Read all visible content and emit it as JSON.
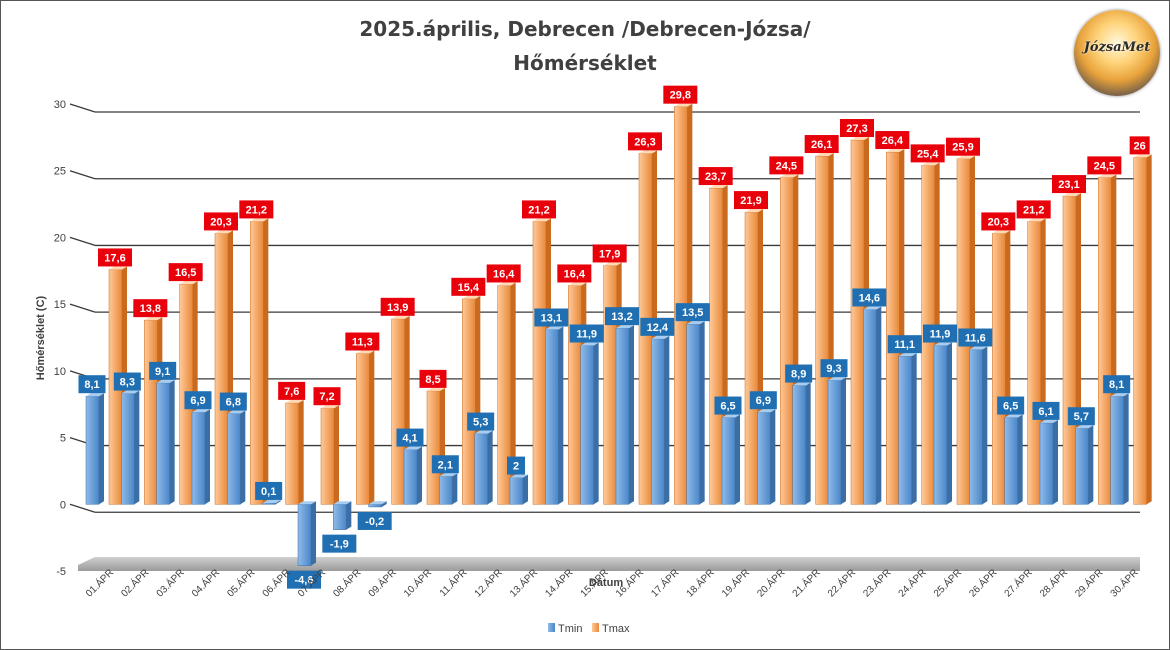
{
  "title_line1": "2025.április, Debrecen /Debrecen-Józsa/",
  "title_line2": "Hőmérséklet",
  "logo_text": "JózsaMet",
  "chart_data": {
    "type": "bar",
    "title": "2025.április, Debrecen /Debrecen-Józsa/ Hőmérséklet",
    "xlabel": "Dátum",
    "ylabel": "Hőmérséklet (C)",
    "ylim": [
      -5,
      30
    ],
    "yticks": [
      -5,
      0,
      5,
      10,
      15,
      20,
      25,
      30
    ],
    "categories": [
      "01.ÁPR",
      "02.ÁPR",
      "03.ÁPR",
      "04.ÁPR",
      "05.ÁPR",
      "06.ÁPR",
      "07.ÁPR",
      "08.ÁPR",
      "09.ÁPR",
      "10.ÁPR",
      "11.ÁPR",
      "12.ÁPR",
      "13.ÁPR",
      "14.ÁPR",
      "15.ÁPR",
      "16.ÁPR",
      "17.ÁPR",
      "18.ÁPR",
      "19.ÁPR",
      "20.ÁPR",
      "21.ÁPR",
      "22.ÁPR",
      "23.ÁPR",
      "24.ÁPR",
      "25.ÁPR",
      "26.ÁPR",
      "27.ÁPR",
      "28.ÁPR",
      "29.ÁPR",
      "30.ÁPR"
    ],
    "series": [
      {
        "name": "Tmin",
        "color": "#5b9bd5",
        "label_color": "#1f6fb2",
        "values": [
          8.1,
          8.3,
          9.1,
          6.9,
          6.8,
          0.1,
          -4.6,
          -1.9,
          -0.2,
          4.1,
          2.1,
          5.3,
          2,
          13.1,
          11.9,
          13.2,
          12.4,
          13.5,
          6.5,
          6.9,
          8.9,
          9.3,
          14.6,
          11.1,
          11.9,
          11.6,
          6.5,
          6.1,
          5.7,
          8.1
        ]
      },
      {
        "name": "Tmax",
        "color": "#f4a460",
        "label_color": "#e8000b",
        "values": [
          17.6,
          13.8,
          16.5,
          20.3,
          21.2,
          7.6,
          7.2,
          11.3,
          13.9,
          8.5,
          15.4,
          16.4,
          21.2,
          16.4,
          17.9,
          26.3,
          29.8,
          23.7,
          21.9,
          24.5,
          26.1,
          27.3,
          26.4,
          25.4,
          25.9,
          20.3,
          21.2,
          23.1,
          24.5,
          26
        ]
      }
    ],
    "grid": true,
    "legend": "bottom-center"
  }
}
